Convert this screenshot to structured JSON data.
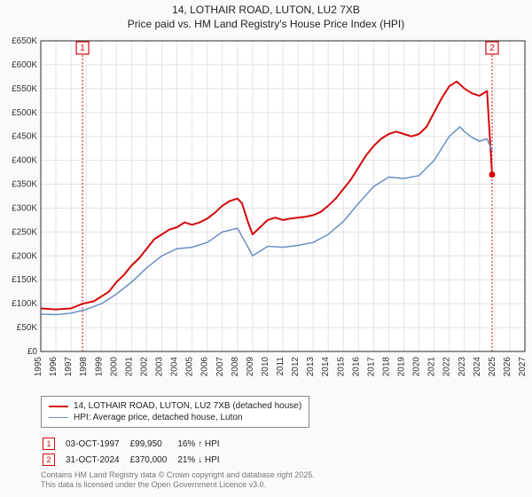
{
  "title_line1": "14, LOTHAIR ROAD, LUTON, LU2 7XB",
  "title_line2": "Price paid vs. HM Land Registry's House Price Index (HPI)",
  "chart": {
    "type": "line",
    "background_color": "#fafaf9",
    "plot_bg": "#ffffff",
    "grid_color": "#e2e2e2",
    "axis_color": "#2a2a2a",
    "label_fontsize": 10,
    "x_min": 1995,
    "x_max": 2027,
    "x_ticks": [
      1995,
      1996,
      1997,
      1998,
      1999,
      2000,
      2001,
      2002,
      2003,
      2004,
      2005,
      2006,
      2007,
      2008,
      2009,
      2010,
      2011,
      2012,
      2013,
      2014,
      2015,
      2016,
      2017,
      2018,
      2019,
      2020,
      2021,
      2022,
      2023,
      2024,
      2025,
      2026,
      2027
    ],
    "y_min": 0,
    "y_max": 650000,
    "y_ticks": [
      0,
      50000,
      100000,
      150000,
      200000,
      250000,
      300000,
      350000,
      400000,
      450000,
      500000,
      550000,
      600000,
      650000
    ],
    "y_tick_labels": [
      "£0",
      "£50K",
      "£100K",
      "£150K",
      "£200K",
      "£250K",
      "£300K",
      "£350K",
      "£400K",
      "£450K",
      "£500K",
      "£550K",
      "£600K",
      "£650K"
    ],
    "series": [
      {
        "name": "price_paid",
        "color": "#d40808",
        "width": 2,
        "points": [
          [
            1995.0,
            90000
          ],
          [
            1996.0,
            88000
          ],
          [
            1997.0,
            90000
          ],
          [
            1997.76,
            99950
          ],
          [
            1998.5,
            105000
          ],
          [
            1999.0,
            115000
          ],
          [
            1999.5,
            125000
          ],
          [
            2000.0,
            145000
          ],
          [
            2000.5,
            160000
          ],
          [
            2001.0,
            180000
          ],
          [
            2001.5,
            195000
          ],
          [
            2002.0,
            215000
          ],
          [
            2002.5,
            235000
          ],
          [
            2003.0,
            245000
          ],
          [
            2003.5,
            255000
          ],
          [
            2004.0,
            260000
          ],
          [
            2004.5,
            270000
          ],
          [
            2005.0,
            265000
          ],
          [
            2005.5,
            270000
          ],
          [
            2006.0,
            278000
          ],
          [
            2006.5,
            290000
          ],
          [
            2007.0,
            305000
          ],
          [
            2007.5,
            315000
          ],
          [
            2008.0,
            320000
          ],
          [
            2008.3,
            310000
          ],
          [
            2008.7,
            270000
          ],
          [
            2009.0,
            245000
          ],
          [
            2009.5,
            260000
          ],
          [
            2010.0,
            275000
          ],
          [
            2010.5,
            280000
          ],
          [
            2011.0,
            275000
          ],
          [
            2011.5,
            278000
          ],
          [
            2012.0,
            280000
          ],
          [
            2012.5,
            282000
          ],
          [
            2013.0,
            285000
          ],
          [
            2013.5,
            292000
          ],
          [
            2014.0,
            305000
          ],
          [
            2014.5,
            320000
          ],
          [
            2015.0,
            340000
          ],
          [
            2015.5,
            360000
          ],
          [
            2016.0,
            385000
          ],
          [
            2016.5,
            410000
          ],
          [
            2017.0,
            430000
          ],
          [
            2017.5,
            445000
          ],
          [
            2018.0,
            455000
          ],
          [
            2018.5,
            460000
          ],
          [
            2019.0,
            455000
          ],
          [
            2019.5,
            450000
          ],
          [
            2020.0,
            455000
          ],
          [
            2020.5,
            470000
          ],
          [
            2021.0,
            500000
          ],
          [
            2021.5,
            530000
          ],
          [
            2022.0,
            555000
          ],
          [
            2022.5,
            565000
          ],
          [
            2023.0,
            550000
          ],
          [
            2023.5,
            540000
          ],
          [
            2024.0,
            535000
          ],
          [
            2024.5,
            545000
          ],
          [
            2024.83,
            370000
          ]
        ]
      },
      {
        "name": "hpi",
        "color": "#6a8fc6",
        "width": 1.5,
        "points": [
          [
            1995.0,
            78000
          ],
          [
            1996.0,
            77000
          ],
          [
            1997.0,
            80000
          ],
          [
            1998.0,
            88000
          ],
          [
            1999.0,
            100000
          ],
          [
            2000.0,
            120000
          ],
          [
            2001.0,
            145000
          ],
          [
            2002.0,
            175000
          ],
          [
            2003.0,
            200000
          ],
          [
            2004.0,
            215000
          ],
          [
            2005.0,
            218000
          ],
          [
            2006.0,
            228000
          ],
          [
            2007.0,
            250000
          ],
          [
            2008.0,
            258000
          ],
          [
            2008.7,
            218000
          ],
          [
            2009.0,
            200000
          ],
          [
            2010.0,
            220000
          ],
          [
            2011.0,
            218000
          ],
          [
            2012.0,
            222000
          ],
          [
            2013.0,
            228000
          ],
          [
            2014.0,
            245000
          ],
          [
            2015.0,
            272000
          ],
          [
            2016.0,
            310000
          ],
          [
            2017.0,
            345000
          ],
          [
            2018.0,
            365000
          ],
          [
            2019.0,
            362000
          ],
          [
            2020.0,
            368000
          ],
          [
            2021.0,
            400000
          ],
          [
            2022.0,
            450000
          ],
          [
            2022.7,
            470000
          ],
          [
            2023.0,
            460000
          ],
          [
            2023.5,
            448000
          ],
          [
            2024.0,
            440000
          ],
          [
            2024.5,
            445000
          ],
          [
            2024.83,
            420000
          ]
        ]
      }
    ],
    "markers": [
      {
        "n": "1",
        "x": 1997.76,
        "color": "#d40808"
      },
      {
        "n": "2",
        "x": 2024.83,
        "color": "#d40808"
      }
    ]
  },
  "legend": {
    "items": [
      {
        "label": "14, LOTHAIR ROAD, LUTON, LU2 7XB (detached house)",
        "color": "#d40808",
        "width": 2
      },
      {
        "label": "HPI: Average price, detached house, Luton",
        "color": "#6a8fc6",
        "width": 1.5
      }
    ]
  },
  "marker_rows": [
    {
      "n": "1",
      "color": "#d40808",
      "date": "03-OCT-1997",
      "price": "£99,950",
      "delta": "16% ↑ HPI"
    },
    {
      "n": "2",
      "color": "#d40808",
      "date": "31-OCT-2024",
      "price": "£370,000",
      "delta": "21% ↓ HPI"
    }
  ],
  "credit_line1": "Contains HM Land Registry data © Crown copyright and database right 2025.",
  "credit_line2": "This data is licensed under the Open Government Licence v3.0."
}
